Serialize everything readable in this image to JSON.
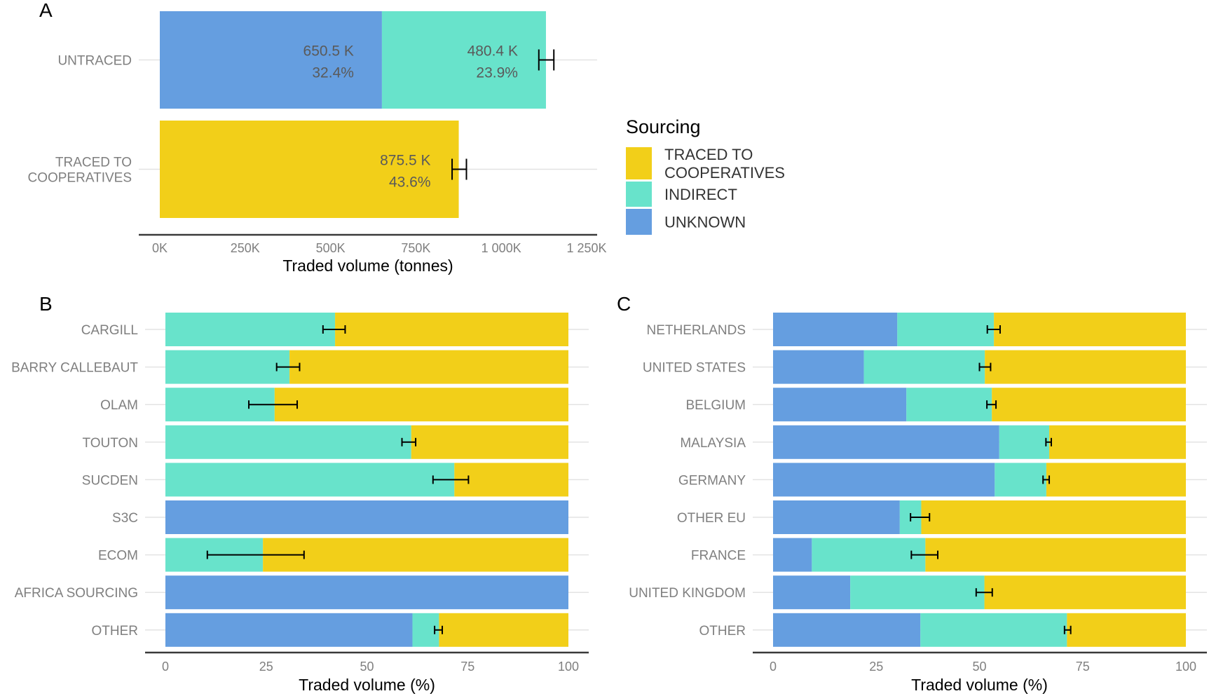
{
  "colors": {
    "traced": "#F2CF19",
    "indirect": "#68E3CB",
    "unknown": "#659EE0",
    "axis": "#3a3a3a",
    "grid": "#e3e3e3",
    "errorbar": "#000000"
  },
  "legend": {
    "title": "Sourcing",
    "items": [
      {
        "key": "traced",
        "label_lines": [
          "TRACED TO",
          "COOPERATIVES"
        ]
      },
      {
        "key": "indirect",
        "label_lines": [
          "INDIRECT"
        ]
      },
      {
        "key": "unknown",
        "label_lines": [
          "UNKNOWN"
        ]
      }
    ]
  },
  "chart_data": [
    {
      "panel": "A",
      "type": "bar",
      "orientation": "horizontal",
      "stacked": true,
      "xlabel": "Traded volume (tonnes)",
      "ylabel": "",
      "xlim": [
        0,
        1250000
      ],
      "xticks": [
        0,
        250000,
        500000,
        750000,
        1000000,
        1250000
      ],
      "xtick_labels": [
        "0K",
        "250K",
        "500K",
        "750K",
        "1 000K",
        "1 250K"
      ],
      "categories": [
        {
          "label_lines": [
            "UNTRACED"
          ],
          "segments": [
            {
              "series": "unknown",
              "value": 650500,
              "label_lines": [
                "650.5 K",
                "32.4%"
              ]
            },
            {
              "series": "indirect",
              "value": 480400,
              "label_lines": [
                "480.4 K",
                "23.9%"
              ]
            }
          ],
          "error": [
            1110000,
            1154000
          ]
        },
        {
          "label_lines": [
            "TRACED TO",
            "COOPERATIVES"
          ],
          "segments": [
            {
              "series": "traced",
              "value": 875500,
              "label_lines": [
                "875.5 K",
                "43.6%"
              ]
            }
          ],
          "error": [
            856000,
            898000
          ]
        }
      ]
    },
    {
      "panel": "B",
      "type": "bar",
      "orientation": "horizontal",
      "stacked": true,
      "xlabel": "Traded volume (%)",
      "ylabel": "",
      "xlim": [
        0,
        100
      ],
      "xticks": [
        0,
        25,
        50,
        75,
        100
      ],
      "xtick_labels": [
        "0",
        "25",
        "50",
        "75",
        "100"
      ],
      "series_order": [
        "unknown",
        "indirect",
        "traced"
      ],
      "categories": [
        {
          "label": "CARGILL",
          "unknown": 0,
          "indirect": 42.1,
          "traced": 57.9,
          "error": [
            39.1,
            44.6
          ]
        },
        {
          "label": "BARRY CALLEBAUT",
          "unknown": 0,
          "indirect": 30.8,
          "traced": 69.2,
          "error": [
            27.6,
            33.3
          ]
        },
        {
          "label": "OLAM",
          "unknown": 0,
          "indirect": 27.1,
          "traced": 72.9,
          "error": [
            20.7,
            32.7
          ]
        },
        {
          "label": "TOUTON",
          "unknown": 0,
          "indirect": 61.0,
          "traced": 39.0,
          "error": [
            58.7,
            62.1
          ]
        },
        {
          "label": "SUCDEN",
          "unknown": 0,
          "indirect": 71.7,
          "traced": 28.3,
          "error": [
            66.4,
            75.2
          ]
        },
        {
          "label": "S3C",
          "unknown": 100,
          "indirect": 0,
          "traced": 0,
          "error": null
        },
        {
          "label": "ECOM",
          "unknown": 0,
          "indirect": 24.2,
          "traced": 75.8,
          "error": [
            10.4,
            34.4
          ]
        },
        {
          "label": "AFRICA SOURCING",
          "unknown": 100,
          "indirect": 0,
          "traced": 0,
          "error": null
        },
        {
          "label": "OTHER",
          "unknown": 61.3,
          "indirect": 6.6,
          "traced": 32.1,
          "error": [
            66.8,
            68.7
          ]
        }
      ]
    },
    {
      "panel": "C",
      "type": "bar",
      "orientation": "horizontal",
      "stacked": true,
      "xlabel": "Traded volume (%)",
      "ylabel": "",
      "xlim": [
        0,
        100
      ],
      "xticks": [
        0,
        25,
        50,
        75,
        100
      ],
      "xtick_labels": [
        "0",
        "25",
        "50",
        "75",
        "100"
      ],
      "series_order": [
        "unknown",
        "indirect",
        "traced"
      ],
      "categories": [
        {
          "label": "NETHERLANDS",
          "unknown": 30.1,
          "indirect": 23.4,
          "traced": 46.5,
          "error": [
            51.9,
            55.0
          ]
        },
        {
          "label": "UNITED STATES",
          "unknown": 22.0,
          "indirect": 29.3,
          "traced": 48.7,
          "error": [
            50.0,
            52.7
          ]
        },
        {
          "label": "BELGIUM",
          "unknown": 32.3,
          "indirect": 20.7,
          "traced": 47.0,
          "error": [
            51.8,
            54.0
          ]
        },
        {
          "label": "MALAYSIA",
          "unknown": 54.8,
          "indirect": 12.1,
          "traced": 33.1,
          "error": [
            66.1,
            67.4
          ]
        },
        {
          "label": "GERMANY",
          "unknown": 53.7,
          "indirect": 12.5,
          "traced": 33.8,
          "error": [
            65.4,
            66.9
          ]
        },
        {
          "label": "OTHER EU",
          "unknown": 30.7,
          "indirect": 5.2,
          "traced": 64.1,
          "error": [
            33.3,
            37.9
          ]
        },
        {
          "label": "FRANCE",
          "unknown": 9.4,
          "indirect": 27.5,
          "traced": 63.1,
          "error": [
            33.5,
            39.9
          ]
        },
        {
          "label": "UNITED KINGDOM",
          "unknown": 18.7,
          "indirect": 32.5,
          "traced": 48.8,
          "error": [
            49.2,
            53.1
          ]
        },
        {
          "label": "OTHER",
          "unknown": 35.7,
          "indirect": 35.5,
          "traced": 28.8,
          "error": [
            70.6,
            72.1
          ]
        }
      ]
    }
  ]
}
